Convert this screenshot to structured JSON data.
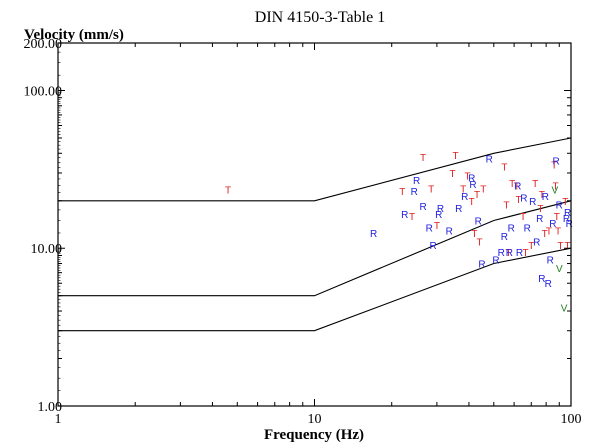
{
  "chart_data": {
    "type": "scatter",
    "title": "DIN 4150-3-Table 1",
    "xlabel": "Frequency (Hz)",
    "ylabel": "Velocity (mm/s)",
    "x_scale": "log",
    "y_scale": "log",
    "xlim": [
      1,
      100
    ],
    "ylim": [
      1,
      200
    ],
    "x_ticks": [
      {
        "value": 1,
        "label": "1"
      },
      {
        "value": 10,
        "label": "10"
      },
      {
        "value": 100,
        "label": "100"
      }
    ],
    "y_ticks": [
      {
        "value": 1,
        "label": "1.00"
      },
      {
        "value": 10,
        "label": "10.00"
      },
      {
        "value": 100,
        "label": "100.00"
      },
      {
        "value": 200,
        "label": "200.00"
      }
    ],
    "grid": false,
    "colors": {
      "axis": "#000000",
      "limit_line": "#000000",
      "T": "#e02020",
      "R": "#2020e0",
      "V": "#208020"
    },
    "limit_lines": [
      {
        "x": [
          1,
          10,
          50,
          100
        ],
        "y": [
          20,
          20,
          40,
          50
        ]
      },
      {
        "x": [
          1,
          10,
          50,
          100
        ],
        "y": [
          5,
          5,
          15,
          20
        ]
      },
      {
        "x": [
          1,
          10,
          50,
          100
        ],
        "y": [
          3,
          3,
          8,
          10
        ]
      }
    ],
    "series": [
      {
        "marker": "T",
        "color": "#e02020",
        "points": [
          [
            4.6,
            23.5
          ],
          [
            22,
            23
          ],
          [
            24,
            16
          ],
          [
            26.5,
            38
          ],
          [
            28.5,
            24
          ],
          [
            30,
            14
          ],
          [
            34.5,
            30
          ],
          [
            35.5,
            39
          ],
          [
            38,
            24
          ],
          [
            39.5,
            29
          ],
          [
            41,
            20
          ],
          [
            42,
            12.5
          ],
          [
            43,
            22
          ],
          [
            44,
            11
          ],
          [
            45.5,
            24
          ],
          [
            55,
            33
          ],
          [
            56,
            19
          ],
          [
            57,
            9.5
          ],
          [
            59,
            26
          ],
          [
            61.5,
            25
          ],
          [
            62.5,
            20.5
          ],
          [
            65,
            16
          ],
          [
            66.5,
            9.5
          ],
          [
            70,
            10.5
          ],
          [
            72.5,
            26
          ],
          [
            76,
            18
          ],
          [
            77,
            22
          ],
          [
            79,
            12.5
          ],
          [
            82,
            13
          ],
          [
            86,
            34
          ],
          [
            87,
            25
          ],
          [
            88,
            16
          ],
          [
            89,
            13
          ],
          [
            91,
            10.5
          ],
          [
            95,
            20
          ],
          [
            97,
            10.5
          ]
        ]
      },
      {
        "marker": "R",
        "color": "#2020e0",
        "points": [
          [
            17,
            12.5
          ],
          [
            22.5,
            16.5
          ],
          [
            24.5,
            23
          ],
          [
            25,
            27
          ],
          [
            26.5,
            18.5
          ],
          [
            28,
            13.5
          ],
          [
            29,
            10.5
          ],
          [
            30.5,
            16.5
          ],
          [
            31,
            18
          ],
          [
            33.5,
            13
          ],
          [
            36.5,
            18
          ],
          [
            38.5,
            21.5
          ],
          [
            41,
            28
          ],
          [
            41.5,
            25.5
          ],
          [
            43.5,
            15
          ],
          [
            45,
            8
          ],
          [
            48,
            37
          ],
          [
            51,
            8.5
          ],
          [
            53.5,
            9.5
          ],
          [
            55,
            12
          ],
          [
            57.5,
            9.5
          ],
          [
            58.5,
            13.5
          ],
          [
            62,
            25
          ],
          [
            63,
            9.5
          ],
          [
            65.5,
            21
          ],
          [
            67.5,
            13.5
          ],
          [
            71,
            20
          ],
          [
            73.5,
            11
          ],
          [
            75.5,
            15.5
          ],
          [
            77,
            6.5
          ],
          [
            79.5,
            21.5
          ],
          [
            81.5,
            6
          ],
          [
            83,
            8.5
          ],
          [
            85,
            14.5
          ],
          [
            87.5,
            36
          ],
          [
            90,
            19
          ],
          [
            96,
            15.5
          ],
          [
            97,
            17
          ],
          [
            98.5,
            14.5
          ]
        ]
      },
      {
        "marker": "V",
        "color": "#208020",
        "points": [
          [
            86.5,
            23.5
          ],
          [
            90,
            7.5
          ],
          [
            94,
            4.2
          ]
        ]
      }
    ]
  }
}
